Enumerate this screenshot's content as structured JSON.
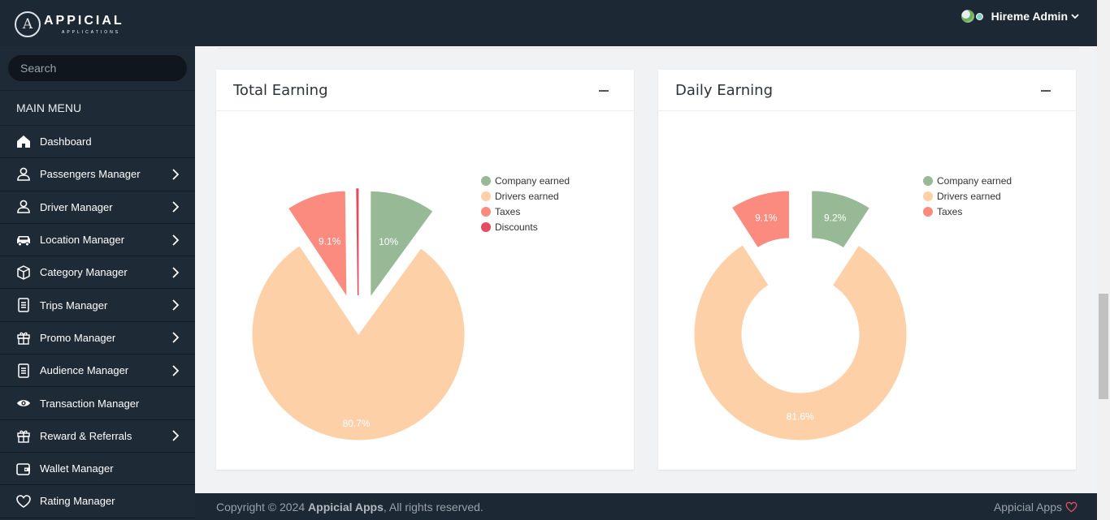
{
  "app": {
    "logo_letter": "A",
    "logo_main": "APPICIAL",
    "logo_sub": "APPLICATIONS"
  },
  "user": {
    "name": "Hireme Admin"
  },
  "search": {
    "placeholder": "Search"
  },
  "sidebar": {
    "title": "MAIN MENU",
    "items": [
      {
        "label": "Dashboard",
        "icon": "home-icon",
        "chevron": false
      },
      {
        "label": "Passengers Manager",
        "icon": "user-icon",
        "chevron": true
      },
      {
        "label": "Driver Manager",
        "icon": "user-icon",
        "chevron": true
      },
      {
        "label": "Location Manager",
        "icon": "car-icon",
        "chevron": true
      },
      {
        "label": "Category Manager",
        "icon": "box-icon",
        "chevron": true
      },
      {
        "label": "Trips Manager",
        "icon": "document-icon",
        "chevron": true
      },
      {
        "label": "Promo Manager",
        "icon": "gift-icon",
        "chevron": true
      },
      {
        "label": "Audience Manager",
        "icon": "document-icon",
        "chevron": true
      },
      {
        "label": "Transaction Manager",
        "icon": "eye-icon",
        "chevron": false
      },
      {
        "label": "Reward & Referrals",
        "icon": "gift-icon",
        "chevron": true
      },
      {
        "label": "Wallet Manager",
        "icon": "wallet-icon",
        "chevron": false
      },
      {
        "label": "Rating Manager",
        "icon": "heart-icon",
        "chevron": false
      }
    ]
  },
  "colors": {
    "company": "#98b996",
    "drivers": "#fdd0a8",
    "taxes": "#fb8a7f",
    "discounts": "#e64b5f"
  },
  "chart_data": [
    {
      "type": "pie",
      "title": "Total Earning",
      "series": [
        {
          "name": "Company earned",
          "value": 10.0,
          "label": "10%",
          "color": "#98b996"
        },
        {
          "name": "Drivers earned",
          "value": 80.7,
          "label": "80.7%",
          "color": "#fdd0a8"
        },
        {
          "name": "Taxes",
          "value": 9.1,
          "label": "9.1%",
          "color": "#fb8a7f"
        },
        {
          "name": "Discounts",
          "value": 0.2,
          "label": "",
          "color": "#e64b5f"
        }
      ],
      "legend": "top-right"
    },
    {
      "type": "pie",
      "title": "Daily Earning",
      "donut": true,
      "series": [
        {
          "name": "Company earned",
          "value": 9.2,
          "label": "9.2%",
          "color": "#98b996"
        },
        {
          "name": "Drivers earned",
          "value": 81.6,
          "label": "81.6%",
          "color": "#fdd0a8"
        },
        {
          "name": "Taxes",
          "value": 9.1,
          "label": "9.1%",
          "color": "#fb8a7f"
        }
      ],
      "legend": "top-right"
    }
  ],
  "footer": {
    "prefix": "Copyright © 2024 ",
    "brand": "Appicial Apps",
    "suffix": ", All rights reserved.",
    "right": "Appicial Apps"
  }
}
